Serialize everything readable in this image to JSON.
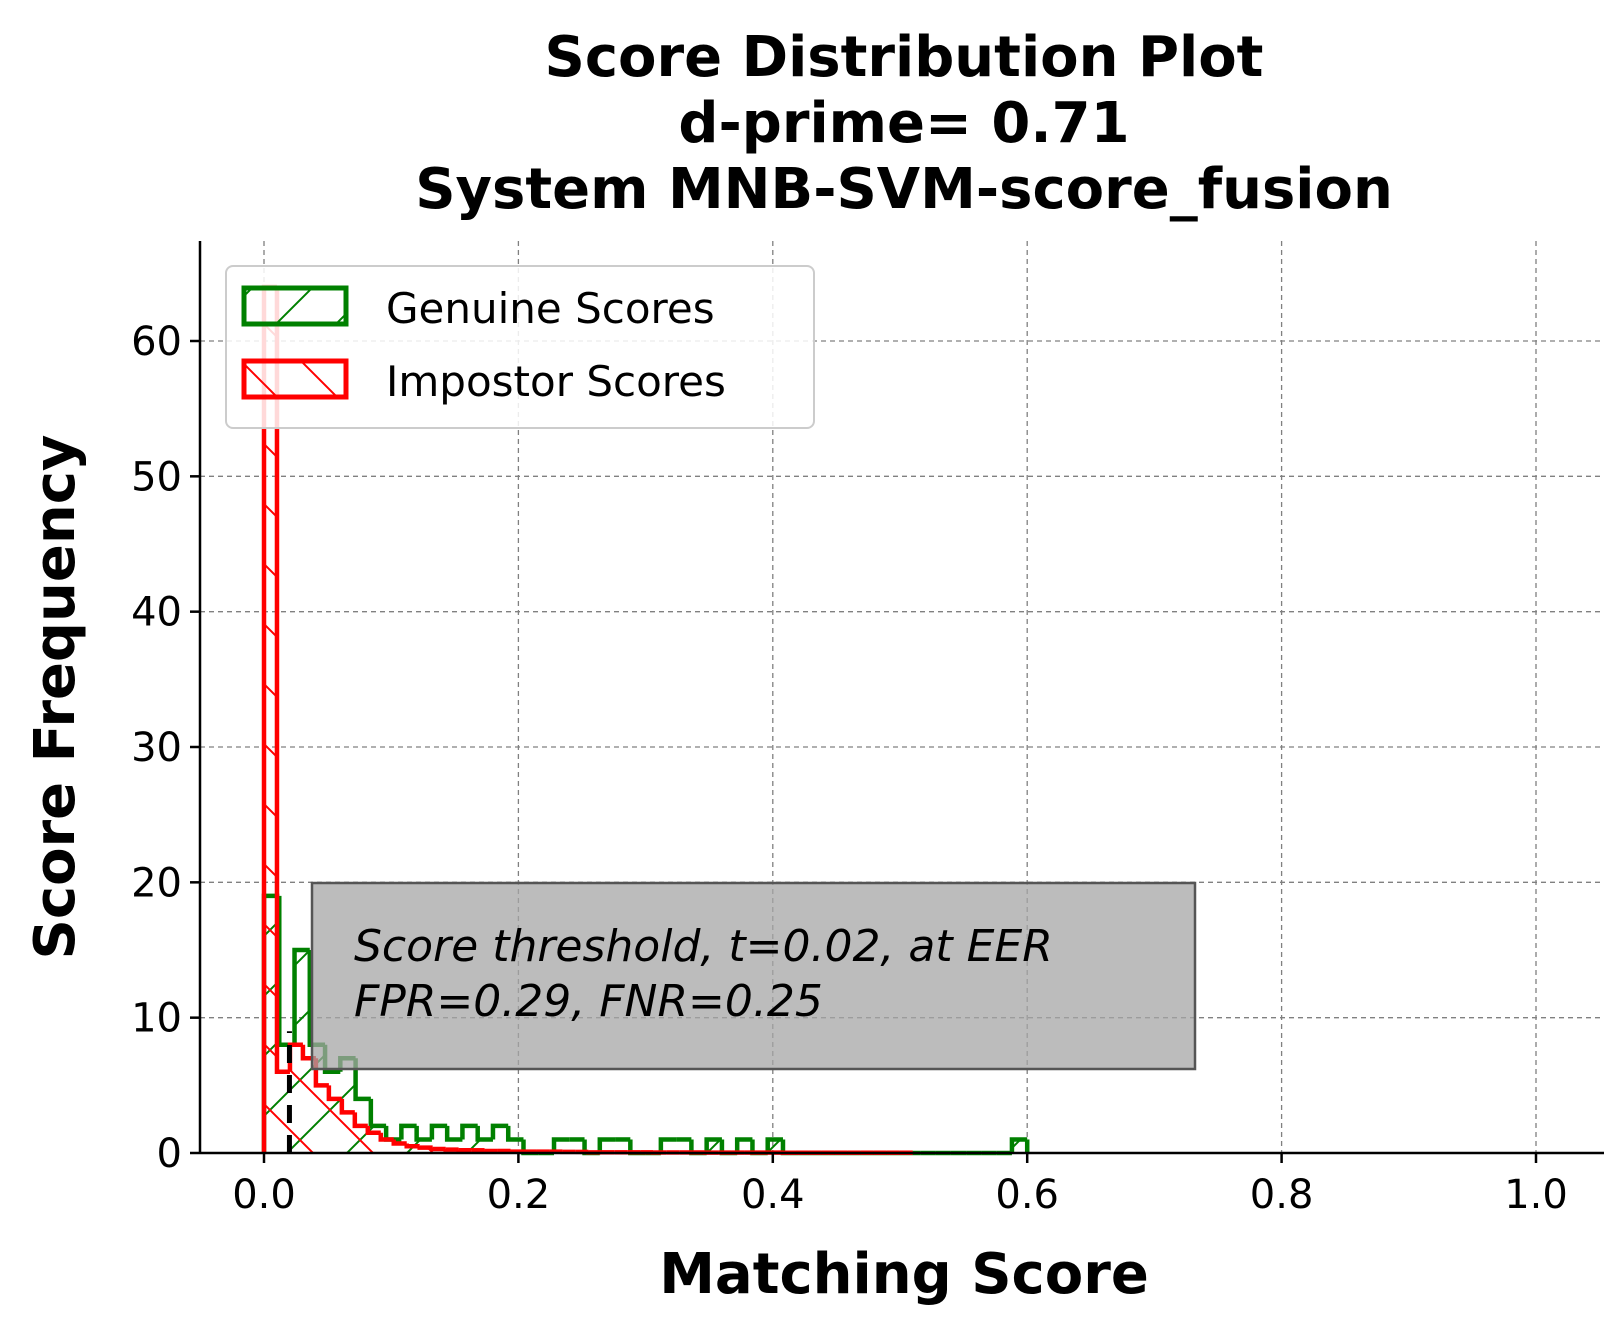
{
  "chart_data": {
    "type": "histogram",
    "title_lines": [
      "Score Distribution Plot",
      "d-prime= 0.71",
      "System MNB-SVM-score_fusion"
    ],
    "xlabel": "Matching Score",
    "ylabel": "Score Frequency",
    "xlim": [
      -0.05,
      1.05
    ],
    "ylim": [
      0,
      67.5
    ],
    "xticks": [
      0.0,
      0.2,
      0.4,
      0.6,
      0.8,
      1.0
    ],
    "xtick_labels": [
      "0.0",
      "0.2",
      "0.4",
      "0.6",
      "0.8",
      "1.0"
    ],
    "yticks": [
      0,
      10,
      20,
      30,
      40,
      50,
      60
    ],
    "ytick_labels": [
      "0",
      "10",
      "20",
      "30",
      "40",
      "50",
      "60"
    ],
    "grid": true,
    "legend_position": "top-left",
    "threshold": 0.02,
    "annotation_lines": [
      "Score threshold, t=0.02, at EER",
      "FPR=0.29, FNR=0.25"
    ],
    "series": [
      {
        "name": "Genuine Scores",
        "color": "#008000",
        "hatch": "/",
        "bin_edges": [
          0.0,
          0.012,
          0.024,
          0.036,
          0.048,
          0.06,
          0.072,
          0.084,
          0.096,
          0.108,
          0.12,
          0.132,
          0.144,
          0.156,
          0.168,
          0.18,
          0.192,
          0.204,
          0.216,
          0.228,
          0.24,
          0.252,
          0.264,
          0.276,
          0.288,
          0.3,
          0.312,
          0.324,
          0.336,
          0.348,
          0.36,
          0.372,
          0.384,
          0.396,
          0.408,
          0.42,
          0.432,
          0.444,
          0.456,
          0.468,
          0.48,
          0.492,
          0.504,
          0.516,
          0.528,
          0.54,
          0.552,
          0.564,
          0.576,
          0.588,
          0.6
        ],
        "counts": [
          19,
          8,
          15,
          8,
          6,
          7,
          4,
          2,
          1,
          2,
          1,
          2,
          1,
          2,
          1,
          2,
          1,
          0,
          0,
          1,
          1,
          0,
          1,
          1,
          0,
          0,
          1,
          1,
          0,
          1,
          0,
          1,
          0,
          1,
          0,
          0,
          0,
          0,
          0,
          0,
          0,
          0,
          0,
          0,
          0,
          0,
          0,
          0,
          0,
          1
        ]
      },
      {
        "name": "Impostor Scores",
        "color": "#ff0000",
        "hatch": "\\",
        "bin_edges": [
          0.0,
          0.0102,
          0.0204,
          0.0306,
          0.0408,
          0.051,
          0.0612,
          0.0714,
          0.0816,
          0.0918,
          0.102,
          0.1122,
          0.1224,
          0.1326,
          0.1428,
          0.153,
          0.1632,
          0.1734,
          0.1836,
          0.1938,
          0.204,
          0.2142,
          0.2244,
          0.2346,
          0.2448,
          0.255,
          0.2652,
          0.2754,
          0.2856,
          0.2958,
          0.306,
          0.3162,
          0.3264,
          0.3366,
          0.3468,
          0.357,
          0.3672,
          0.3774,
          0.3876,
          0.3978,
          0.408,
          0.4182,
          0.4284,
          0.4386,
          0.4488,
          0.459,
          0.4692,
          0.4794,
          0.4896,
          0.4998,
          0.51
        ],
        "counts": [
          64,
          6,
          8,
          7,
          5,
          4,
          3,
          2,
          1.5,
          1.0,
          0.7,
          0.5,
          0.4,
          0.3,
          0.25,
          0.2,
          0.2,
          0.15,
          0.15,
          0.1,
          0.1,
          0.1,
          0.1,
          0.08,
          0.08,
          0.05,
          0.05,
          0.05,
          0.05,
          0.05,
          0.04,
          0.04,
          0.04,
          0.04,
          0.03,
          0.03,
          0.03,
          0.03,
          0.03,
          0.03,
          0.02,
          0.02,
          0.02,
          0.02,
          0.02,
          0.02,
          0.02,
          0.02,
          0.02,
          0.02
        ]
      }
    ]
  }
}
